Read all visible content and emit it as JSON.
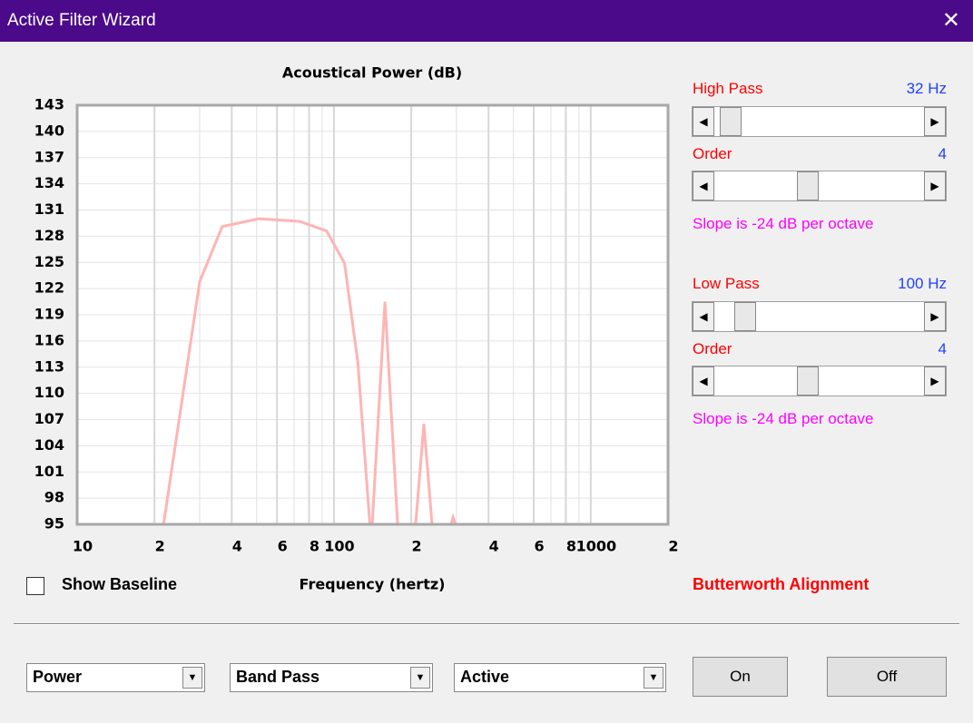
{
  "window": {
    "title": "Active Filter Wizard"
  },
  "chart_data": {
    "type": "line",
    "title": "Acoustical Power (dB)",
    "x_label": "Frequency (hertz)",
    "x": [
      21.7,
      30,
      36.7,
      50.9,
      73.4,
      93.7,
      110,
      124,
      138,
      null,
      141,
      158,
      177,
      208,
      224,
      241,
      286,
      291,
      297
    ],
    "series": [
      {
        "color": "#ffb4b4",
        "values": [
          95,
          122.8,
          129.1,
          130.0,
          129.7,
          128.6,
          124.9,
          113.5,
          95,
          null,
          95,
          120.5,
          95,
          95,
          106.5,
          95,
          95,
          95.8,
          95
        ]
      }
    ],
    "xlim": [
      10,
      2000
    ],
    "ylim": [
      95,
      143
    ],
    "log_x": true,
    "grid": true,
    "xticks": [
      10,
      {
        "value": 20,
        "label": "2"
      },
      {
        "value": 40,
        "label": "4"
      },
      {
        "value": 60,
        "label": "6"
      },
      {
        "value": 80,
        "label": "8"
      },
      100,
      {
        "value": 200,
        "label": "2"
      },
      {
        "value": 400,
        "label": "4"
      },
      {
        "value": 600,
        "label": "6"
      },
      {
        "value": 800,
        "label": "8"
      },
      1000,
      {
        "value": 2000,
        "label": "2"
      }
    ],
    "xminor": [
      30,
      50,
      70,
      90,
      300,
      500,
      700,
      900
    ],
    "yticks": [
      95,
      98,
      101,
      104,
      107,
      110,
      113,
      116,
      119,
      122,
      125,
      128,
      131,
      134,
      137,
      140,
      143
    ]
  },
  "filters": [
    {
      "label": "High Pass",
      "value": "32 Hz",
      "order_label": "Order",
      "order": "4",
      "slope": "Slope is -24 dB per octave"
    },
    {
      "label": "Low Pass",
      "value": "100 Hz",
      "order_label": "Order",
      "order": "4",
      "slope": "Slope is -24 dB per octave"
    }
  ],
  "alignment": "Butterworth Alignment",
  "baseline_checkbox": "Show Baseline",
  "dropdowns": [
    "Power",
    "Band Pass",
    "Active"
  ],
  "buttons": [
    "On",
    "Off"
  ]
}
